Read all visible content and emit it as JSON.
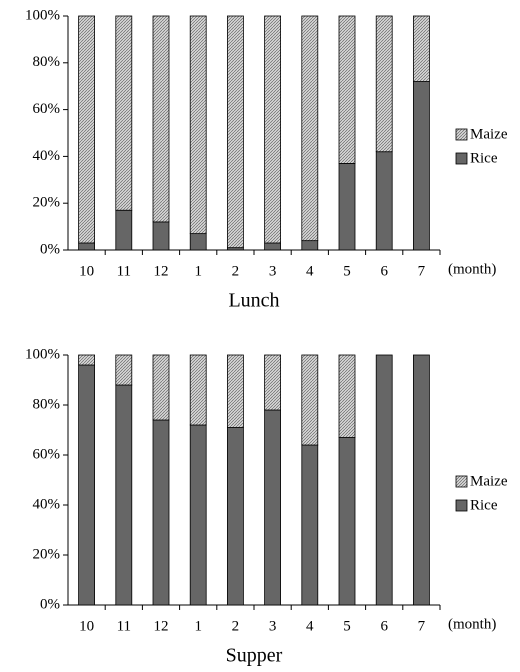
{
  "chart_data": [
    {
      "type": "stacked-bar",
      "title": "Lunch",
      "x_label": "(month)",
      "categories": [
        "10",
        "11",
        "12",
        "1",
        "2",
        "3",
        "4",
        "5",
        "6",
        "7"
      ],
      "series": [
        {
          "name": "Rice",
          "color": "#666666",
          "values": [
            3,
            17,
            12,
            7,
            1,
            3,
            4,
            37,
            42,
            72
          ]
        },
        {
          "name": "Maize",
          "color": "#d4d4d4",
          "values": [
            97,
            83,
            88,
            93,
            99,
            97,
            96,
            63,
            58,
            28
          ]
        }
      ],
      "ylim": [
        0,
        100
      ],
      "yticks": [
        {
          "value": 0,
          "label": "0%"
        },
        {
          "value": 20,
          "label": "20%"
        },
        {
          "value": 40,
          "label": "40%"
        },
        {
          "value": 60,
          "label": "60%"
        },
        {
          "value": 80,
          "label": "80%"
        },
        {
          "value": 100,
          "label": "100%"
        }
      ],
      "legend": "right"
    },
    {
      "type": "stacked-bar",
      "title": "Supper",
      "x_label": "(month)",
      "categories": [
        "10",
        "11",
        "12",
        "1",
        "2",
        "3",
        "4",
        "5",
        "6",
        "7"
      ],
      "series": [
        {
          "name": "Rice",
          "color": "#666666",
          "values": [
            96,
            88,
            74,
            72,
            71,
            78,
            64,
            67,
            100,
            100
          ]
        },
        {
          "name": "Maize",
          "color": "#d4d4d4",
          "values": [
            4,
            12,
            26,
            28,
            29,
            22,
            36,
            33,
            0,
            0
          ]
        }
      ],
      "ylim": [
        0,
        100
      ],
      "yticks": [
        {
          "value": 0,
          "label": "0%"
        },
        {
          "value": 20,
          "label": "20%"
        },
        {
          "value": 40,
          "label": "40%"
        },
        {
          "value": 60,
          "label": "60%"
        },
        {
          "value": 80,
          "label": "80%"
        },
        {
          "value": 100,
          "label": "100%"
        }
      ],
      "legend": "right"
    }
  ]
}
